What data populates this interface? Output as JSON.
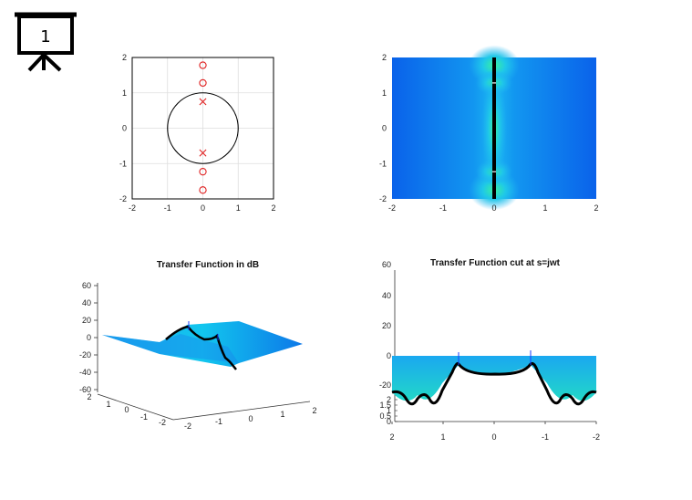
{
  "slide_icon": {
    "icon": "presentation-board-icon",
    "number": "1"
  },
  "chart_data": [
    {
      "type": "scatter",
      "name_hint": "pole-zero-plot",
      "title": "",
      "xlim": [
        -2,
        2
      ],
      "ylim": [
        -2,
        2
      ],
      "x_ticks": [
        "-2",
        "-1",
        "0",
        "1",
        "2"
      ],
      "y_ticks": [
        "-2",
        "-1",
        "0",
        "1",
        "2"
      ],
      "grid": true,
      "unit_circle": true,
      "zeros": [
        {
          "x": 0,
          "y": 1.78
        },
        {
          "x": 0,
          "y": 1.28
        },
        {
          "x": 0,
          "y": -1.23
        },
        {
          "x": 0,
          "y": -1.75
        }
      ],
      "poles": [
        {
          "x": 0,
          "y": 0.75
        },
        {
          "x": 0,
          "y": -0.7
        }
      ],
      "colors": {
        "marker": "#e02020",
        "circle": "#000000"
      }
    },
    {
      "type": "heatmap",
      "name_hint": "magnitude-top-view",
      "title": "",
      "xlim": [
        -2,
        2
      ],
      "ylim": [
        -2,
        2
      ],
      "x_ticks": [
        "-2",
        "-1",
        "0",
        "1",
        "2"
      ],
      "y_ticks": [
        "-2",
        "-1",
        "0",
        "1",
        "2"
      ],
      "axis_line_x": 0,
      "colors": {
        "low": "#0a6cf0",
        "mid": "#1fb0f2",
        "high": "#38f0a0",
        "line": "#000000"
      }
    },
    {
      "type": "surface",
      "name_hint": "transfer-function-3d",
      "title": "Transfer Function in dB",
      "zlim": [
        -60,
        60
      ],
      "z_ticks": [
        "60",
        "40",
        "20",
        "0",
        "-20",
        "-40",
        "-60"
      ],
      "x_ticks": [
        "-2",
        "-1",
        "0",
        "1",
        "2"
      ],
      "y_ticks": [
        "2",
        "1",
        "0",
        "-1",
        "-2"
      ],
      "colors": {
        "surface": "#1aa8f0",
        "dark": "#0d78e8",
        "curve": "#000000"
      }
    },
    {
      "type": "area",
      "name_hint": "transfer-function-cut",
      "title": "Transfer Function cut at s=jwt",
      "x_ticks": [
        "2",
        "1",
        "0",
        "-1",
        "-2"
      ],
      "y_ticks": [
        "60",
        "40",
        "20",
        "0",
        "-20"
      ],
      "small_ticks": [
        "2",
        "1.5",
        "1",
        "0.5",
        "0"
      ],
      "colors": {
        "surface": "#1aa8f0",
        "curve": "#000000",
        "spike": "#1a3cff"
      }
    }
  ]
}
